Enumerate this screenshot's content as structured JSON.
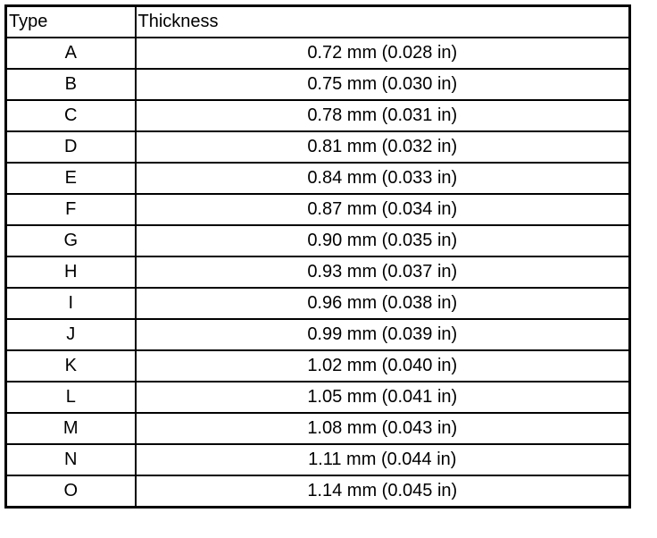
{
  "table": {
    "header": [
      "Type",
      "Thickness"
    ],
    "rows": [
      [
        "A",
        "0.72 mm (0.028 in)"
      ],
      [
        "B",
        "0.75 mm (0.030 in)"
      ],
      [
        "C",
        "0.78 mm (0.031 in)"
      ],
      [
        "D",
        "0.81 mm (0.032 in)"
      ],
      [
        "E",
        "0.84 mm (0.033 in)"
      ],
      [
        "F",
        "0.87 mm (0.034 in)"
      ],
      [
        "G",
        "0.90 mm (0.035 in)"
      ],
      [
        "H",
        "0.93 mm (0.037 in)"
      ],
      [
        "I",
        "0.96 mm (0.038 in)"
      ],
      [
        "J",
        "0.99 mm (0.039 in)"
      ],
      [
        "K",
        "1.02 mm (0.040 in)"
      ],
      [
        "L",
        "1.05 mm (0.041 in)"
      ],
      [
        "M",
        "1.08 mm (0.043 in)"
      ],
      [
        "N",
        "1.11 mm (0.044 in)"
      ],
      [
        "O",
        "1.14 mm (0.045 in)"
      ]
    ]
  }
}
